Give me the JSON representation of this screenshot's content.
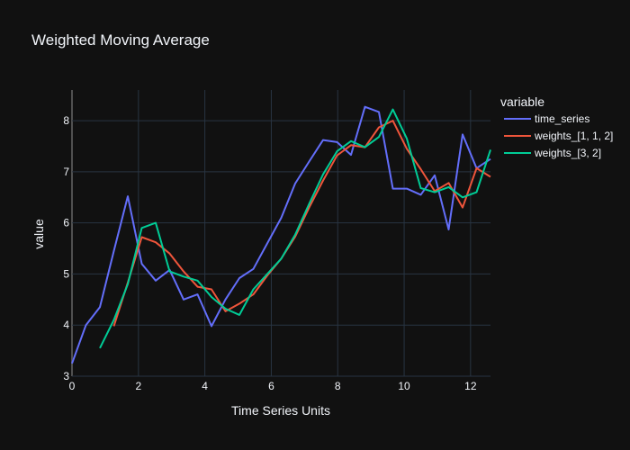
{
  "chart_data": {
    "type": "line",
    "title": "Weighted Moving Average",
    "xlabel": "Time Series Units",
    "ylabel": "value",
    "xlim": [
      0,
      12.6
    ],
    "ylim": [
      3,
      8.6
    ],
    "x_ticks": [
      "0",
      "2",
      "4",
      "6",
      "8",
      "10",
      "12"
    ],
    "y_ticks": [
      "3",
      "4",
      "5",
      "6",
      "7",
      "8"
    ],
    "grid": true,
    "legend": {
      "title": "variable",
      "placement": "right"
    },
    "series": [
      {
        "name": "time_series",
        "color": "#636efa",
        "x": [
          0,
          0.42,
          0.84,
          1.26,
          1.68,
          2.1,
          2.52,
          2.94,
          3.36,
          3.78,
          4.2,
          4.62,
          5.04,
          5.46,
          5.88,
          6.3,
          6.72,
          7.14,
          7.56,
          7.98,
          8.4,
          8.82,
          9.24,
          9.66,
          10.08,
          10.5,
          10.92,
          11.34,
          11.76,
          12.18,
          12.6
        ],
        "y": [
          3.25,
          4.0,
          4.35,
          5.45,
          6.52,
          5.2,
          4.87,
          5.08,
          4.5,
          4.6,
          3.98,
          4.5,
          4.92,
          5.1,
          5.6,
          6.1,
          6.77,
          7.2,
          7.62,
          7.58,
          7.33,
          8.27,
          8.17,
          6.67,
          6.67,
          6.55,
          6.93,
          5.87,
          7.73,
          7.07,
          7.25
        ]
      },
      {
        "name": "weights_[1, 1, 2]",
        "color": "#ef553b",
        "x": [
          1.26,
          1.68,
          2.1,
          2.52,
          2.94,
          3.36,
          3.78,
          4.2,
          4.62,
          5.04,
          5.46,
          5.88,
          6.3,
          6.72,
          7.14,
          7.56,
          7.98,
          8.4,
          8.82,
          9.24,
          9.66,
          10.08,
          10.5,
          10.92,
          11.34,
          11.76,
          12.18,
          12.6
        ],
        "y": [
          3.98,
          4.83,
          5.72,
          5.62,
          5.4,
          5.05,
          4.75,
          4.7,
          4.27,
          4.42,
          4.6,
          4.97,
          5.3,
          5.73,
          6.3,
          6.83,
          7.32,
          7.52,
          7.48,
          7.87,
          8.0,
          7.45,
          7.05,
          6.62,
          6.78,
          6.3,
          7.07,
          6.9
        ]
      },
      {
        "name": "weights_[3, 2]",
        "color": "#00cc96",
        "x": [
          0.84,
          1.26,
          1.68,
          2.1,
          2.52,
          2.94,
          3.36,
          3.78,
          4.2,
          4.62,
          5.04,
          5.46,
          5.88,
          6.3,
          6.72,
          7.14,
          7.56,
          7.98,
          8.4,
          8.82,
          9.24,
          9.66,
          10.08,
          10.5,
          10.92,
          11.34,
          11.76,
          12.18,
          12.6
        ],
        "y": [
          3.55,
          4.1,
          4.8,
          5.9,
          6.0,
          5.05,
          4.95,
          4.87,
          4.55,
          4.32,
          4.2,
          4.7,
          5.0,
          5.3,
          5.77,
          6.37,
          6.95,
          7.4,
          7.6,
          7.48,
          7.68,
          8.22,
          7.65,
          6.68,
          6.6,
          6.7,
          6.5,
          6.6,
          7.43
        ]
      }
    ]
  }
}
